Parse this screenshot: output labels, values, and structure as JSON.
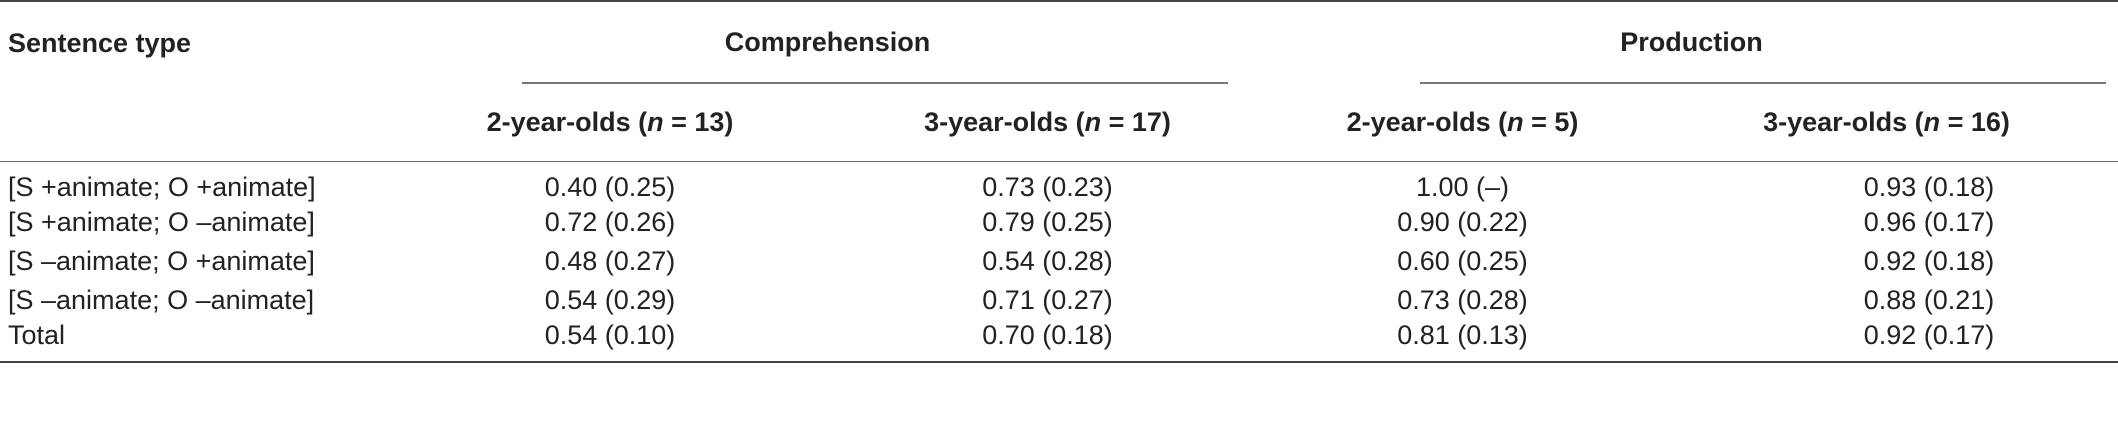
{
  "table": {
    "stub_header": "Sentence type",
    "groups": [
      {
        "label": "Comprehension"
      },
      {
        "label": "Production"
      }
    ],
    "subheaders": [
      {
        "prefix": "2-year-olds (",
        "n": "n",
        "suffix": " = 13)"
      },
      {
        "prefix": "3-year-olds (",
        "n": "n",
        "suffix": " = 17)"
      },
      {
        "prefix": "2-year-olds (",
        "n": "n",
        "suffix": " = 5)"
      },
      {
        "prefix": "3-year-olds (",
        "n": "n",
        "suffix": " = 16)"
      }
    ],
    "rows": [
      {
        "label": "[S +animate; O +animate]",
        "values": [
          "0.40 (0.25)",
          "0.73 (0.23)",
          "1.00 (–)",
          "0.93 (0.18)"
        ]
      },
      {
        "label": "[S +animate; O –animate]",
        "values": [
          "0.72 (0.26)",
          "0.79 (0.25)",
          "0.90 (0.22)",
          "0.96 (0.17)"
        ]
      },
      {
        "label": "[S –animate; O +animate]",
        "values": [
          "0.48 (0.27)",
          "0.54 (0.28)",
          "0.60 (0.25)",
          "0.92 (0.18)"
        ]
      },
      {
        "label": "[S –animate; O –animate]",
        "values": [
          "0.54 (0.29)",
          "0.71 (0.27)",
          "0.73 (0.28)",
          "0.88 (0.21)"
        ]
      },
      {
        "label": "Total",
        "values": [
          "0.54 (0.10)",
          "0.70 (0.18)",
          "0.81 (0.13)",
          "0.92 (0.17)"
        ]
      }
    ]
  }
}
